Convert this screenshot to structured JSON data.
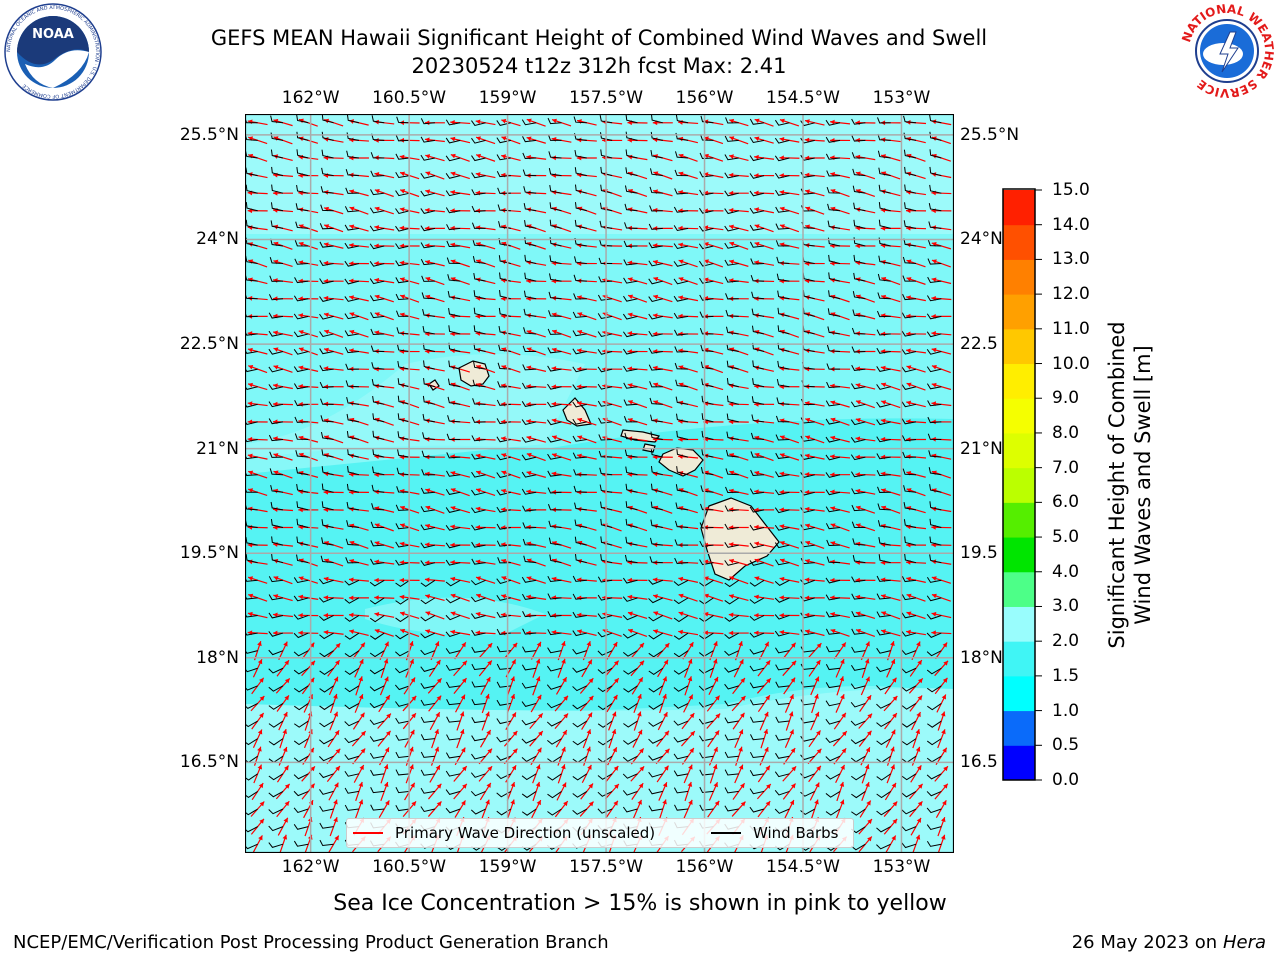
{
  "header": {
    "title_line1": "GEFS MEAN Hawaii Significant Height of Combined Wind Waves and Swell",
    "title_line2": "20230524 t12z 312h fcst   Max: 2.41"
  },
  "logos": {
    "noaa_text": "NOAA",
    "noaa_ring_text": "NATIONAL OCEANIC AND ATMOSPHERIC ADMINISTRATION · U.S. DEPARTMENT OF COMMERCE",
    "nws_ring_text": "NATIONAL WEATHER SERVICE"
  },
  "map": {
    "lon_labels": [
      "162°W",
      "160.5°W",
      "159°W",
      "157.5°W",
      "156°W",
      "154.5°W",
      "153°W"
    ],
    "lon_values": [
      -162,
      -160.5,
      -159,
      -157.5,
      -156,
      -154.5,
      -153
    ],
    "lat_labels_left": [
      "25.5°N",
      "24°N",
      "22.5°N",
      "21°N",
      "19.5°N",
      "18°N",
      "16.5°N"
    ],
    "lat_labels_right": [
      "25.5°N",
      "24°N",
      "22.5",
      "21°N",
      "19.5",
      "18°N",
      "16.5"
    ],
    "lat_values": [
      25.5,
      24,
      22.5,
      21,
      19.5,
      18,
      16.5
    ],
    "extent": {
      "lon_min": -163,
      "lon_max": -152.2,
      "lat_min": 15.2,
      "lat_max": 25.8
    },
    "ocean_color": "#7ff8f8",
    "wave_color": "#ff0000",
    "barb_color": "#000000",
    "land_color": "#efebd7"
  },
  "colorbar": {
    "title_line1": "Significant Height of Combined",
    "title_line2": "Wind Waves and Swell [m]",
    "tick_labels": [
      "0.0",
      "0.5",
      "1.0",
      "1.5",
      "2.0",
      "3.0",
      "4.0",
      "5.0",
      "6.0",
      "7.0",
      "8.0",
      "9.0",
      "10.0",
      "11.0",
      "12.0",
      "13.0",
      "14.0",
      "15.0"
    ],
    "colors": [
      "#0000ff",
      "#0a6bfa",
      "#00ffff",
      "#40f5f5",
      "#99fdfd",
      "#4dff88",
      "#00e500",
      "#55ee00",
      "#bbff00",
      "#ddff00",
      "#f5ff00",
      "#ffee00",
      "#ffc800",
      "#ffa000",
      "#ff8000",
      "#ff5000",
      "#ff2000"
    ]
  },
  "legend": {
    "wave_label": "Primary Wave Direction (unscaled)",
    "barb_label": "Wind Barbs"
  },
  "notes": {
    "ice": "Sea Ice Concentration > 15% is shown in pink to yellow"
  },
  "footer": {
    "left": "NCEP/EMC/Verification Post Processing Product Generation Branch",
    "right_date": "26 May 2023 on",
    "right_host": "Hera"
  }
}
